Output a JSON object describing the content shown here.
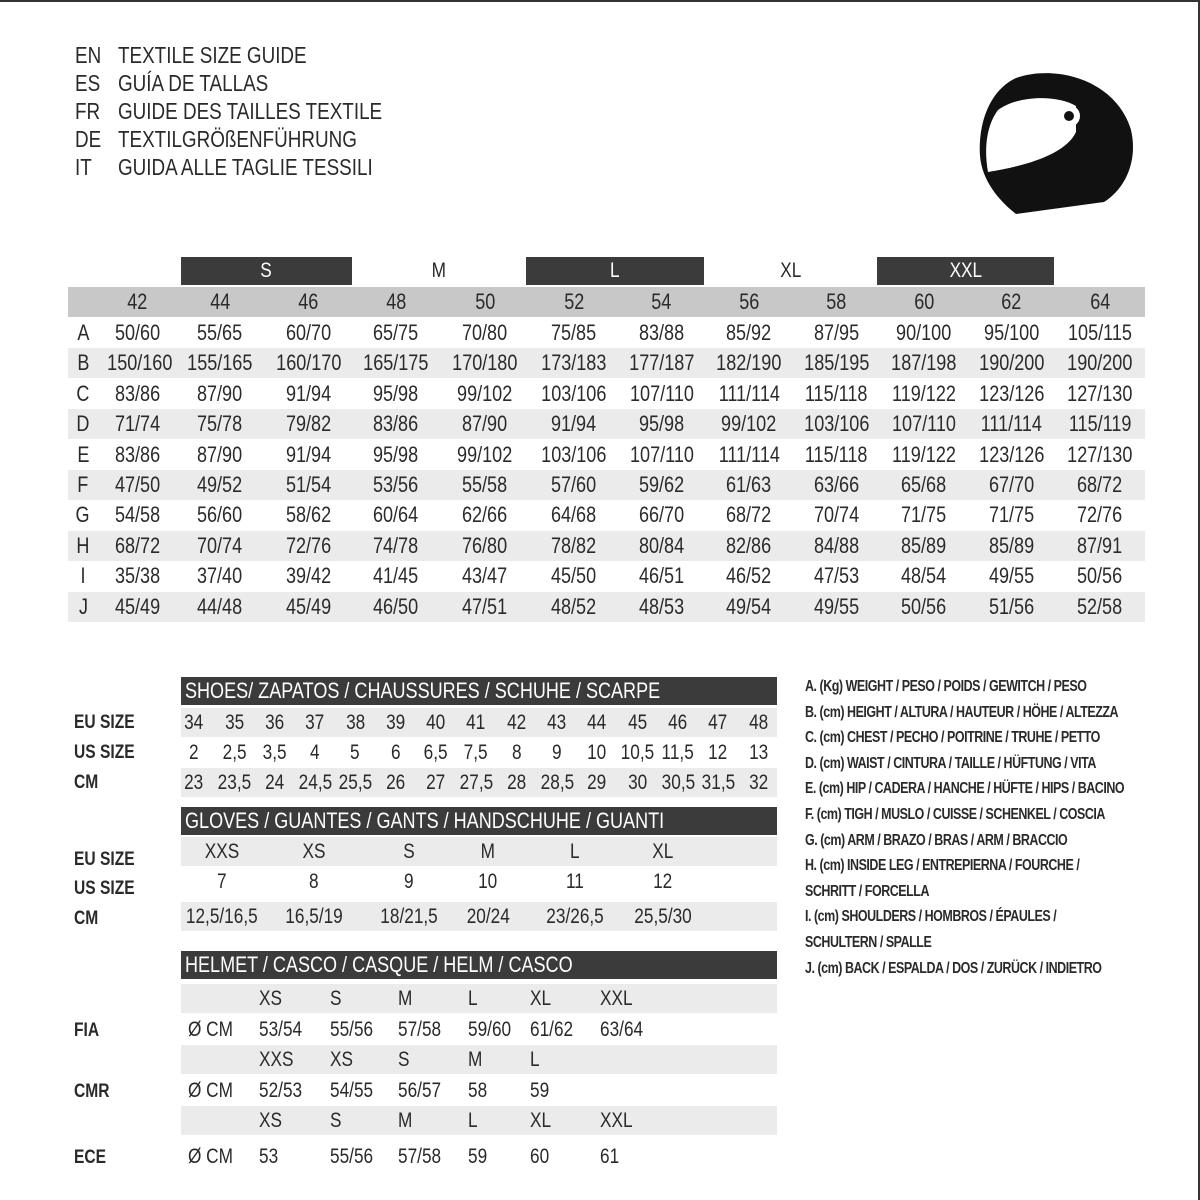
{
  "titles": [
    {
      "code": "EN",
      "text": "TEXTILE SIZE GUIDE"
    },
    {
      "code": "ES",
      "text": "GUÍA DE TALLAS"
    },
    {
      "code": "FR",
      "text": "GUIDE DES TAILLES TEXTILE"
    },
    {
      "code": "DE",
      "text": "TEXTILGRÖßENFÜHRUNG"
    },
    {
      "code": "IT",
      "text": "GUIDA ALLE TAGLIE TESSILI"
    }
  ],
  "icon": "helmet-icon",
  "colors": {
    "dark_bar": "#3b3b3b",
    "header_gray": "#c8c8c8",
    "stripe_gray": "#ebebeb"
  },
  "textile": {
    "size_bands": [
      "S",
      "M",
      "L",
      "XL",
      "XXL"
    ],
    "columns": [
      "42",
      "44",
      "46",
      "48",
      "50",
      "52",
      "54",
      "56",
      "58",
      "60",
      "62",
      "64"
    ],
    "rows": [
      {
        "label": "A",
        "values": [
          "50/60",
          "55/65",
          "60/70",
          "65/75",
          "70/80",
          "75/85",
          "83/88",
          "85/92",
          "87/95",
          "90/100",
          "95/100",
          "105/115"
        ]
      },
      {
        "label": "B",
        "values": [
          "150/160",
          "155/165",
          "160/170",
          "165/175",
          "170/180",
          "173/183",
          "177/187",
          "182/190",
          "185/195",
          "187/198",
          "190/200",
          "190/200"
        ]
      },
      {
        "label": "C",
        "values": [
          "83/86",
          "87/90",
          "91/94",
          "95/98",
          "99/102",
          "103/106",
          "107/110",
          "111/114",
          "115/118",
          "119/122",
          "123/126",
          "127/130"
        ]
      },
      {
        "label": "D",
        "values": [
          "71/74",
          "75/78",
          "79/82",
          "83/86",
          "87/90",
          "91/94",
          "95/98",
          "99/102",
          "103/106",
          "107/110",
          "111/114",
          "115/119"
        ]
      },
      {
        "label": "E",
        "values": [
          "83/86",
          "87/90",
          "91/94",
          "95/98",
          "99/102",
          "103/106",
          "107/110",
          "111/114",
          "115/118",
          "119/122",
          "123/126",
          "127/130"
        ]
      },
      {
        "label": "F",
        "values": [
          "47/50",
          "49/52",
          "51/54",
          "53/56",
          "55/58",
          "57/60",
          "59/62",
          "61/63",
          "63/66",
          "65/68",
          "67/70",
          "68/72"
        ]
      },
      {
        "label": "G",
        "values": [
          "54/58",
          "56/60",
          "58/62",
          "60/64",
          "62/66",
          "64/68",
          "66/70",
          "68/72",
          "70/74",
          "71/75",
          "71/75",
          "72/76"
        ]
      },
      {
        "label": "H",
        "values": [
          "68/72",
          "70/74",
          "72/76",
          "74/78",
          "76/80",
          "78/82",
          "80/84",
          "82/86",
          "84/88",
          "85/89",
          "85/89",
          "87/91"
        ]
      },
      {
        "label": "I",
        "values": [
          "35/38",
          "37/40",
          "39/42",
          "41/45",
          "43/47",
          "45/50",
          "46/51",
          "46/52",
          "47/53",
          "48/54",
          "49/55",
          "50/56"
        ]
      },
      {
        "label": "J",
        "values": [
          "45/49",
          "44/48",
          "45/49",
          "46/50",
          "47/51",
          "48/52",
          "48/53",
          "49/54",
          "49/55",
          "50/56",
          "51/56",
          "52/58"
        ]
      }
    ]
  },
  "shoes": {
    "title": "SHOES/ ZAPATOS / CHAUSSURES / SCHUHE / SCARPE",
    "rows": [
      {
        "label": "EU SIZE",
        "values": [
          "34",
          "35",
          "36",
          "37",
          "38",
          "39",
          "40",
          "41",
          "42",
          "43",
          "44",
          "45",
          "46",
          "47",
          "48"
        ]
      },
      {
        "label": "US SIZE",
        "values": [
          "2",
          "2,5",
          "3,5",
          "4",
          "5",
          "6",
          "6,5",
          "7,5",
          "8",
          "9",
          "10",
          "10,5",
          "11,5",
          "12",
          "13"
        ]
      },
      {
        "label": "CM",
        "values": [
          "23",
          "23,5",
          "24",
          "24,5",
          "25,5",
          "26",
          "27",
          "27,5",
          "28",
          "28,5",
          "29",
          "30",
          "30,5",
          "31,5",
          "32"
        ]
      }
    ]
  },
  "gloves": {
    "title": "GLOVES / GUANTES / GANTS / HANDSCHUHE / GUANTI",
    "rows": [
      {
        "label": "EU SIZE",
        "values": [
          "XXS",
          "XS",
          "S",
          "M",
          "L",
          "XL"
        ]
      },
      {
        "label": "US SIZE",
        "values": [
          "7",
          "8",
          "9",
          "10",
          "11",
          "12"
        ]
      },
      {
        "label": "CM",
        "values": [
          "12,5/16,5",
          "16,5/19",
          "18/21,5",
          "20/24",
          "23/26,5",
          "25,5/30"
        ]
      }
    ]
  },
  "helmet": {
    "title": "HELMET / CASCO / CASQUE / HELM / CASCO",
    "unit": "Ø CM",
    "groups": [
      {
        "label": "FIA",
        "sizes": [
          "XS",
          "S",
          "M",
          "L",
          "XL",
          "XXL"
        ],
        "values": [
          "53/54",
          "55/56",
          "57/58",
          "59/60",
          "61/62",
          "63/64"
        ]
      },
      {
        "label": "CMR",
        "sizes": [
          "XXS",
          "XS",
          "S",
          "M",
          "L"
        ],
        "values": [
          "52/53",
          "54/55",
          "56/57",
          "58",
          "59"
        ]
      },
      {
        "label": "ECE",
        "sizes": [
          "XS",
          "S",
          "M",
          "L",
          "XL",
          "XXL"
        ],
        "values": [
          "53",
          "55/56",
          "57/58",
          "59",
          "60",
          "61"
        ]
      }
    ]
  },
  "legend": [
    "A. (Kg) WEIGHT / PESO / POIDS / GEWITCH / PESO",
    "B. (cm) HEIGHT / ALTURA / HAUTEUR / HÖHE / ALTEZZA",
    "C. (cm) CHEST / PECHO / POITRINE / TRUHE / PETTO",
    "D. (cm) WAIST / CINTURA / TAILLE / HÜFTUNG / VITA",
    "E. (cm) HIP / CADERA / HANCHE / HÜFTE / HIPS /  BACINO",
    "F.  (cm) TIGH / MUSLO / CUISSE / SCHENKEL / COSCIA",
    "G. (cm) ARM  / BRAZO / BRAS / ARM / BRACCIO",
    "H. (cm) INSIDE LEG / ENTREPIERNA / FOURCHE /",
    "SCHRITT / FORCELLA",
    "I.  (cm) SHOULDERS / HOMBROS / ÉPAULES /",
    "SCHULTERN / SPALLE",
    "J. (cm) BACK / ESPALDA / DOS / ZURÜCK / INDIETRO"
  ]
}
